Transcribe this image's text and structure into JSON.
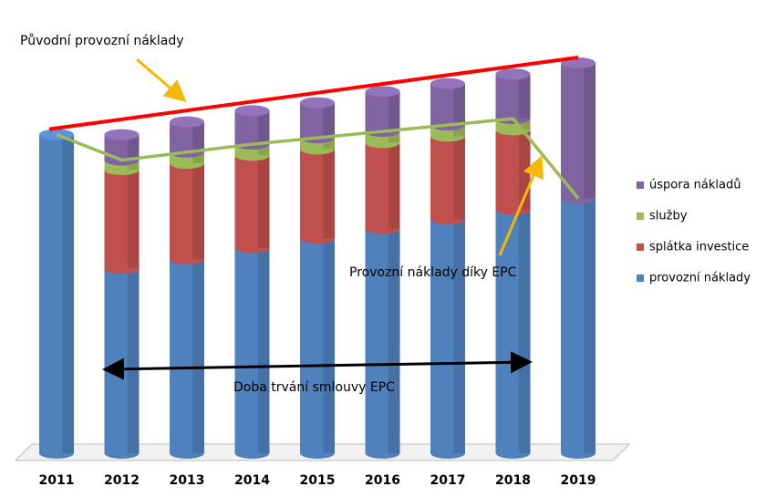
{
  "chart_data": {
    "type": "stacked-cylinder",
    "categories": [
      "2011",
      "2012",
      "2013",
      "2014",
      "2015",
      "2016",
      "2017",
      "2018",
      "2019"
    ],
    "series": [
      {
        "name": "provozní náklady",
        "color": "#4f81bd",
        "values": [
          100,
          58,
          61,
          64.5,
          67.5,
          70.5,
          73.5,
          76.5,
          80
        ]
      },
      {
        "name": "splátka investice",
        "color": "#c0504d",
        "values": [
          0,
          31,
          30,
          29,
          28,
          27,
          26,
          25,
          0
        ]
      },
      {
        "name": "služby",
        "color": "#9bbb59",
        "values": [
          0,
          3,
          3.5,
          3.5,
          3.5,
          3.5,
          3.5,
          3.5,
          0
        ]
      },
      {
        "name": "úspora nákladů",
        "color": "#8064a2",
        "values": [
          0,
          8,
          9.5,
          10.5,
          11,
          12.5,
          13,
          14,
          42.5
        ]
      }
    ],
    "annotations": [
      "Původní provozní náklady",
      "Provozní náklady díky EPC",
      "Doba trvání smlouvy EPC"
    ]
  }
}
